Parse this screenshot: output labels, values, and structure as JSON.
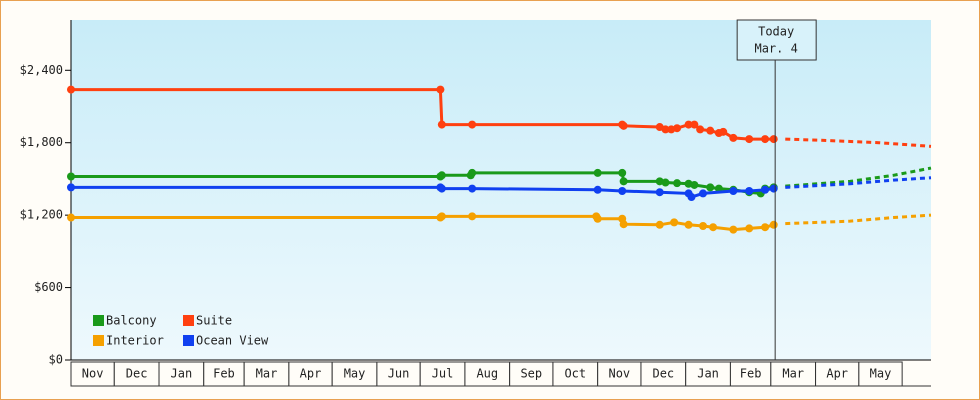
{
  "chart_data": {
    "type": "line",
    "ylim": [
      0,
      2800
    ],
    "yticks": [
      {
        "value": 0,
        "label": "$0"
      },
      {
        "value": 600,
        "label": "$600"
      },
      {
        "value": 1200,
        "label": "$1,200"
      },
      {
        "value": 1800,
        "label": "$1,800"
      },
      {
        "value": 2400,
        "label": "$2,400"
      }
    ],
    "xlim": [
      0,
      596
    ],
    "xticks": [
      {
        "value": 0,
        "label": "Nov"
      },
      {
        "value": 30,
        "label": "Dec"
      },
      {
        "value": 61,
        "label": "Jan"
      },
      {
        "value": 92,
        "label": "Feb"
      },
      {
        "value": 120,
        "label": "Mar"
      },
      {
        "value": 151,
        "label": "Apr"
      },
      {
        "value": 181,
        "label": "May"
      },
      {
        "value": 212,
        "label": "Jun"
      },
      {
        "value": 242,
        "label": "Jul"
      },
      {
        "value": 273,
        "label": "Aug"
      },
      {
        "value": 304,
        "label": "Sep"
      },
      {
        "value": 334,
        "label": "Oct"
      },
      {
        "value": 365,
        "label": "Nov"
      },
      {
        "value": 395,
        "label": "Dec"
      },
      {
        "value": 426,
        "label": "Jan"
      },
      {
        "value": 457,
        "label": "Feb"
      },
      {
        "value": 485,
        "label": "Mar"
      },
      {
        "value": 516,
        "label": "Apr"
      },
      {
        "value": 546,
        "label": "May"
      }
    ],
    "today": {
      "x": 488,
      "label": "Today",
      "date": "Mar. 4"
    },
    "series": [
      {
        "name": "Balcony",
        "color": "#1a9a1a",
        "x": [
          0,
          256,
          257,
          277,
          278,
          365,
          382,
          383,
          408,
          412,
          420,
          428,
          432,
          443,
          449,
          459,
          470,
          478,
          481,
          487
        ],
        "values": [
          1520,
          1520,
          1530,
          1530,
          1550,
          1550,
          1550,
          1480,
          1480,
          1470,
          1465,
          1460,
          1450,
          1430,
          1420,
          1410,
          1390,
          1380,
          1420,
          1430
        ],
        "projection": {
          "x": [
            495,
            540,
            570,
            596
          ],
          "values": [
            1440,
            1480,
            1530,
            1590
          ]
        }
      },
      {
        "name": "Suite",
        "color": "#ff4010",
        "x": [
          0,
          256,
          257,
          278,
          382,
          383,
          408,
          412,
          416,
          420,
          428,
          432,
          436,
          443,
          449,
          452,
          459,
          470,
          481,
          487
        ],
        "values": [
          2240,
          2240,
          1950,
          1950,
          1950,
          1940,
          1930,
          1910,
          1910,
          1920,
          1950,
          1950,
          1910,
          1900,
          1880,
          1890,
          1840,
          1830,
          1830,
          1830
        ],
        "projection": {
          "x": [
            495,
            520,
            560,
            596
          ],
          "values": [
            1830,
            1820,
            1800,
            1770
          ]
        }
      },
      {
        "name": "Interior",
        "color": "#f5a000",
        "x": [
          0,
          256,
          257,
          278,
          364,
          365,
          382,
          383,
          408,
          418,
          428,
          438,
          445,
          459,
          470,
          481,
          487
        ],
        "values": [
          1180,
          1180,
          1190,
          1190,
          1190,
          1170,
          1170,
          1125,
          1120,
          1140,
          1120,
          1110,
          1100,
          1080,
          1090,
          1100,
          1120
        ],
        "projection": {
          "x": [
            495,
            540,
            570,
            596
          ],
          "values": [
            1130,
            1150,
            1180,
            1200
          ]
        }
      },
      {
        "name": "Ocean View",
        "color": "#1040f0",
        "x": [
          0,
          256,
          257,
          278,
          365,
          382,
          408,
          428,
          430,
          438,
          459,
          470,
          481,
          487
        ],
        "values": [
          1430,
          1430,
          1420,
          1420,
          1410,
          1400,
          1390,
          1380,
          1350,
          1380,
          1400,
          1400,
          1410,
          1420
        ],
        "projection": {
          "x": [
            495,
            540,
            570,
            596
          ],
          "values": [
            1430,
            1460,
            1490,
            1510
          ]
        }
      }
    ]
  }
}
